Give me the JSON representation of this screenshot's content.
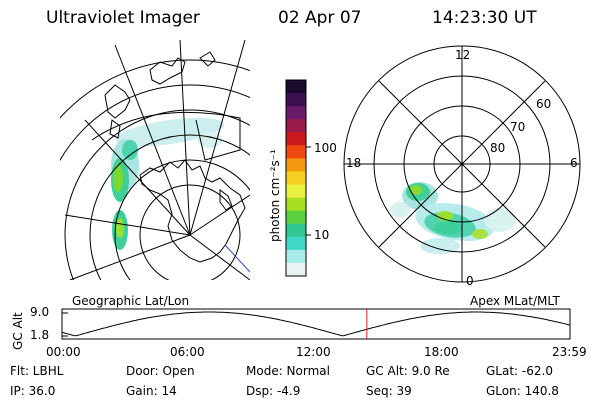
{
  "header": {
    "title": "Ultraviolet Imager",
    "date": "02 Apr 07",
    "time": "14:23:30 UT"
  },
  "colorbar": {
    "unit_label": "photon cm⁻²s⁻¹",
    "ticks": [
      "100",
      "10"
    ],
    "colors": [
      "#1a0a2e",
      "#3a1050",
      "#6a1a6a",
      "#9a1a4a",
      "#cc1a1a",
      "#ee4a10",
      "#f59a10",
      "#f5d020",
      "#e8f040",
      "#a8e020",
      "#5ad040",
      "#30c890",
      "#40d8c8",
      "#a8ecec",
      "#e8f4f4"
    ]
  },
  "polar_plot": {
    "labels": {
      "top": "12",
      "left": "18",
      "right": "6",
      "bottom": "0"
    },
    "lat_labels": [
      "60",
      "70",
      "80"
    ],
    "caption": "Apex MLat/MLT"
  },
  "geo_plot": {
    "caption": "Geographic Lat/Lon"
  },
  "altitude_plot": {
    "ylabel": "GC Alt",
    "yticks": [
      "9.0",
      "1.8"
    ],
    "xticks": [
      "00:00",
      "06:00",
      "12:00",
      "18:00",
      "23:59"
    ],
    "marker_time": "14:23:30"
  },
  "info": {
    "filter": "Flt: LBHL",
    "ip": "IP: 36.0",
    "door": "Door: Open",
    "gain": "Gain: 14",
    "mode": "Mode: Normal",
    "dsp": "Dsp:    -4.9",
    "gc_alt": "GC Alt: 9.0 Re",
    "seq": "Seq: 39",
    "glat": "GLat: -62.0",
    "glon": "GLon: 140.8"
  }
}
